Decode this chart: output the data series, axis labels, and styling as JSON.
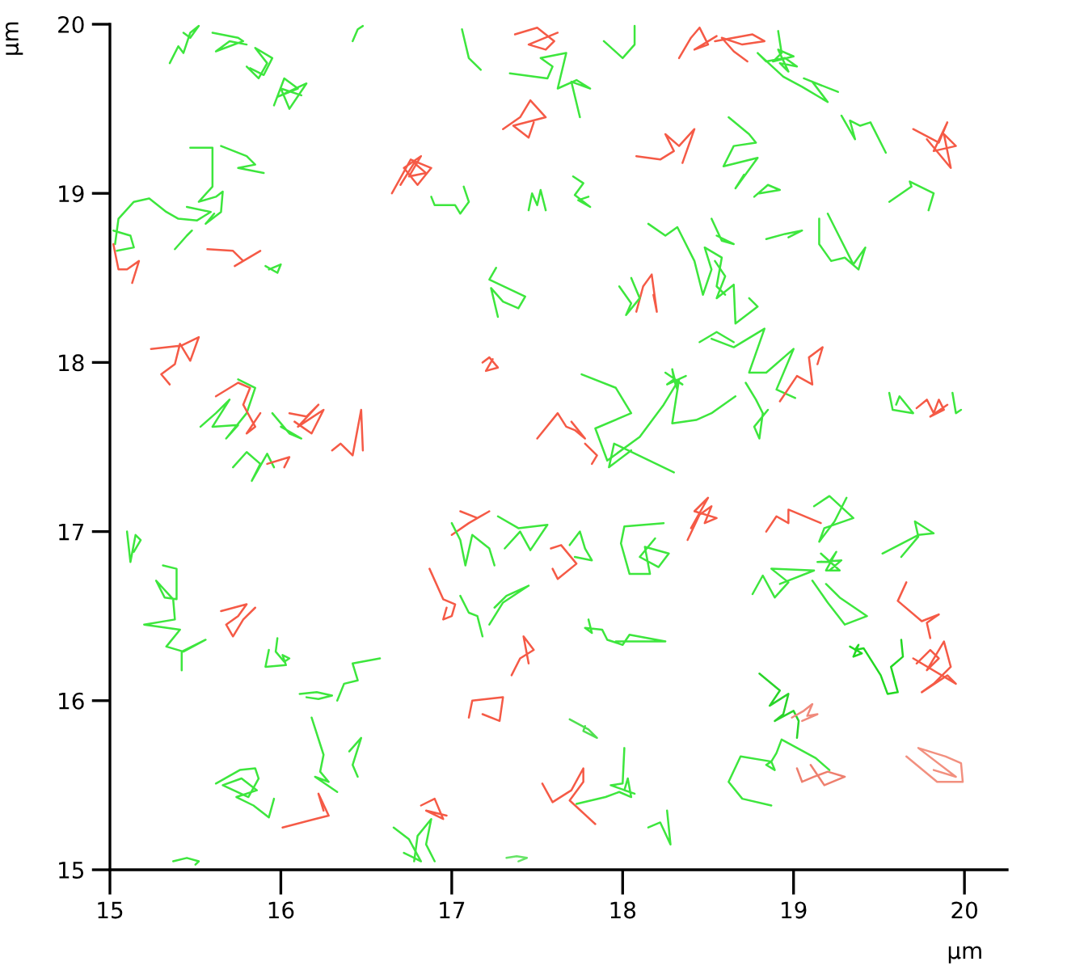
{
  "chart_data": {
    "type": "line",
    "xlabel": "μm",
    "ylabel": "μm",
    "xlim": [
      15,
      20.25
    ],
    "ylim": [
      15,
      20
    ],
    "xticks": [
      15,
      16,
      17,
      18,
      19,
      20
    ],
    "yticks": [
      15,
      16,
      17,
      18,
      19,
      20
    ],
    "series": [
      {
        "color": "#3de63d",
        "x": [
          15.35,
          15.4,
          15.43,
          15.47,
          15.52,
          15.47,
          15.43
        ],
        "values": [
          19.77,
          19.87,
          19.83,
          19.95,
          19.99,
          19.92,
          19.95
        ]
      },
      {
        "color": "#3de63d",
        "x": [
          15.6,
          15.75,
          15.78,
          15.62,
          15.7,
          15.8
        ],
        "values": [
          19.95,
          19.92,
          19.9,
          19.84,
          19.9,
          19.88
        ]
      },
      {
        "color": "#3de63d",
        "x": [
          15.8,
          15.87,
          15.92,
          15.85,
          15.95,
          15.9,
          15.82
        ],
        "values": [
          19.75,
          19.68,
          19.77,
          19.86,
          19.8,
          19.7,
          19.74
        ]
      },
      {
        "color": "#3de63d",
        "x": [
          15.96,
          16.02,
          16.1,
          15.98,
          16.15,
          16.05,
          16.0,
          16.12
        ],
        "values": [
          19.52,
          19.68,
          19.62,
          19.57,
          19.65,
          19.5,
          19.62,
          19.58
        ]
      },
      {
        "color": "#3de63d",
        "x": [
          16.42,
          16.45,
          16.48
        ],
        "values": [
          19.9,
          19.97,
          19.99
        ]
      },
      {
        "color": "#3de63d",
        "x": [
          15.47,
          15.6,
          15.6,
          15.52,
          15.62,
          15.66,
          15.65,
          15.56,
          15.61
        ],
        "values": [
          19.27,
          19.27,
          19.04,
          18.95,
          18.98,
          19.01,
          18.89,
          18.82,
          18.88
        ]
      },
      {
        "color": "#3de63d",
        "x": [
          15.65,
          15.8,
          15.85,
          15.75,
          15.9
        ],
        "values": [
          19.28,
          19.22,
          19.17,
          19.15,
          19.12
        ]
      },
      {
        "color": "#3de63d",
        "x": [
          15.03,
          15.05,
          15.14,
          15.23,
          15.33,
          15.4,
          15.51,
          15.59,
          15.45
        ],
        "values": [
          18.7,
          18.85,
          18.95,
          18.97,
          18.89,
          18.85,
          18.84,
          18.89,
          18.92
        ]
      },
      {
        "color": "#3de63d",
        "x": [
          15.02,
          15.12,
          15.14,
          15.04
        ],
        "values": [
          18.78,
          18.75,
          18.68,
          18.66
        ]
      },
      {
        "color": "#3de63d",
        "x": [
          15.38,
          15.45,
          15.48
        ],
        "values": [
          18.67,
          18.75,
          18.78
        ]
      },
      {
        "color": "#f55a46",
        "x": [
          15.57,
          15.72,
          15.78,
          15.73,
          15.88
        ],
        "values": [
          18.67,
          18.66,
          18.6,
          18.57,
          18.66
        ]
      },
      {
        "color": "#3de63d",
        "x": [
          15.91,
          15.98,
          16.0,
          15.93
        ],
        "values": [
          18.57,
          18.53,
          18.58,
          18.55
        ]
      },
      {
        "color": "#f55a46",
        "x": [
          15.02,
          15.05,
          15.1,
          15.17,
          15.13
        ],
        "values": [
          18.7,
          18.55,
          18.55,
          18.6,
          18.47
        ]
      },
      {
        "color": "#f55a46",
        "x": [
          15.24,
          15.42,
          15.52,
          15.47,
          15.41,
          15.38,
          15.3,
          15.35
        ],
        "values": [
          18.08,
          18.1,
          18.15,
          18.01,
          18.11,
          17.99,
          17.93,
          17.87
        ]
      },
      {
        "color": "#3de63d",
        "x": [
          15.53,
          15.62,
          15.7,
          15.6,
          15.75,
          15.68,
          15.8,
          15.85,
          15.75
        ],
        "values": [
          17.62,
          17.7,
          17.78,
          17.62,
          17.63,
          17.55,
          17.7,
          17.85,
          17.9
        ]
      },
      {
        "color": "#f55a46",
        "x": [
          15.62,
          15.75,
          15.82,
          15.78,
          15.85,
          15.8,
          15.88
        ],
        "values": [
          17.8,
          17.88,
          17.85,
          17.75,
          17.62,
          17.58,
          17.7
        ]
      },
      {
        "color": "#3de63d",
        "x": [
          15.72,
          15.8,
          15.88,
          15.83,
          15.92,
          15.96
        ],
        "values": [
          17.38,
          17.47,
          17.4,
          17.3,
          17.46,
          17.38
        ]
      },
      {
        "color": "#f55a46",
        "x": [
          15.92,
          16.05,
          16.02
        ],
        "values": [
          17.4,
          17.44,
          17.38
        ]
      },
      {
        "color": "#f55a46",
        "x": [
          16.05,
          16.15,
          16.22,
          16.1,
          16.25,
          16.18,
          16.08
        ],
        "values": [
          17.7,
          17.68,
          17.75,
          17.62,
          17.72,
          17.58,
          17.65
        ]
      },
      {
        "color": "#3de63d",
        "x": [
          15.95,
          16.05,
          16.12,
          16.0
        ],
        "values": [
          17.7,
          17.58,
          17.55,
          17.62
        ]
      },
      {
        "color": "#f55a46",
        "x": [
          16.3,
          16.35,
          16.42,
          16.47,
          16.48
        ],
        "values": [
          17.48,
          17.52,
          17.45,
          17.72,
          17.48
        ]
      },
      {
        "color": "#3de63d",
        "x": [
          17.06,
          17.1,
          17.17
        ],
        "values": [
          19.97,
          19.8,
          19.73
        ]
      },
      {
        "color": "#f55a46",
        "x": [
          17.37,
          17.5,
          17.6,
          17.55,
          17.45,
          17.62
        ],
        "values": [
          19.94,
          19.98,
          19.9,
          19.85,
          19.88,
          19.95
        ]
      },
      {
        "color": "#3de63d",
        "x": [
          17.34,
          17.56,
          17.59,
          17.52,
          17.67,
          17.62,
          17.73,
          17.81,
          17.7,
          17.75
        ],
        "values": [
          19.71,
          19.68,
          19.75,
          19.8,
          19.83,
          19.62,
          19.67,
          19.62,
          19.66,
          19.45
        ]
      },
      {
        "color": "#3de63d",
        "x": [
          17.89,
          18.0,
          18.07,
          18.07
        ],
        "values": [
          19.9,
          19.8,
          19.88,
          19.99
        ]
      },
      {
        "color": "#f55a46",
        "x": [
          18.33,
          18.4,
          18.45,
          18.5,
          18.42,
          18.55
        ],
        "values": [
          19.8,
          19.92,
          19.98,
          19.88,
          19.85,
          19.93
        ]
      },
      {
        "color": "#f55a46",
        "x": [
          17.3,
          17.4,
          17.46,
          17.55,
          17.36,
          17.45,
          17.48
        ],
        "values": [
          19.38,
          19.45,
          19.55,
          19.45,
          19.4,
          19.33,
          19.42
        ]
      },
      {
        "color": "#f55a46",
        "x": [
          16.7,
          16.78,
          16.85,
          16.75,
          16.82,
          16.72,
          16.8,
          16.88,
          16.76,
          16.65
        ],
        "values": [
          19.05,
          19.18,
          19.12,
          19.1,
          19.22,
          19.15,
          19.05,
          19.15,
          19.2,
          19.0
        ]
      },
      {
        "color": "#3de63d",
        "x": [
          16.88,
          16.9,
          17.02,
          17.05,
          17.1,
          17.07
        ],
        "values": [
          18.98,
          18.93,
          18.93,
          18.88,
          18.95,
          19.04
        ]
      },
      {
        "color": "#3de63d",
        "x": [
          17.45,
          17.47,
          17.5,
          17.52,
          17.55
        ],
        "values": [
          18.9,
          19.0,
          18.93,
          19.02,
          18.9
        ]
      },
      {
        "color": "#3de63d",
        "x": [
          17.71,
          17.77,
          17.72,
          17.81,
          17.74,
          17.8
        ],
        "values": [
          19.1,
          19.06,
          18.99,
          18.92,
          18.96,
          18.98
        ]
      },
      {
        "color": "#f55a46",
        "x": [
          18.08,
          18.22,
          18.3,
          18.25,
          18.33,
          18.42,
          18.35
        ],
        "values": [
          19.22,
          19.2,
          19.25,
          19.35,
          19.28,
          19.38,
          19.18
        ]
      },
      {
        "color": "#3de63d",
        "x": [
          18.15,
          18.25,
          18.32,
          18.42,
          18.47,
          18.52,
          18.48,
          18.58,
          18.55,
          18.6
        ],
        "values": [
          18.82,
          18.75,
          18.8,
          18.6,
          18.4,
          18.55,
          18.68,
          18.62,
          18.45,
          18.4
        ]
      },
      {
        "color": "#f55a46",
        "x": [
          18.08,
          18.12,
          18.17,
          18.2,
          18.18
        ],
        "values": [
          18.3,
          18.45,
          18.52,
          18.3,
          18.4
        ]
      },
      {
        "color": "#3de63d",
        "x": [
          17.98,
          18.05,
          18.02,
          18.1,
          18.05
        ],
        "values": [
          18.45,
          18.35,
          18.28,
          18.38,
          18.5
        ]
      },
      {
        "color": "#3de63d",
        "x": [
          17.26,
          17.22,
          17.43,
          17.39,
          17.3,
          17.23,
          17.27
        ],
        "values": [
          18.56,
          18.49,
          18.39,
          18.32,
          18.36,
          18.44,
          18.27
        ]
      },
      {
        "color": "#f55a46",
        "x": [
          17.18,
          17.22,
          17.27,
          17.2,
          17.24
        ],
        "values": [
          18.0,
          18.03,
          17.97,
          17.95,
          18.02
        ]
      },
      {
        "color": "#f55a46",
        "x": [
          17.5,
          17.62,
          17.67,
          17.72,
          17.78,
          17.7
        ],
        "values": [
          17.55,
          17.7,
          17.62,
          17.6,
          17.55,
          17.65
        ]
      },
      {
        "color": "#3de63d",
        "x": [
          17.76,
          17.96,
          18.05,
          17.84,
          17.91,
          18.1,
          18.24,
          18.33,
          18.29,
          18.43,
          18.52,
          18.66
        ],
        "values": [
          17.93,
          17.85,
          17.7,
          17.61,
          17.42,
          17.56,
          17.75,
          17.9,
          17.64,
          17.66,
          17.7,
          17.8
        ]
      },
      {
        "color": "#3de63d",
        "x": [
          18.25,
          18.35,
          18.3,
          18.29,
          18.32,
          18.3,
          18.26,
          18.37
        ],
        "values": [
          17.94,
          17.87,
          17.9,
          17.96,
          17.84,
          17.9,
          17.87,
          17.92
        ]
      },
      {
        "color": "#3de63d",
        "x": [
          18.45,
          18.55,
          18.65
        ],
        "values": [
          18.12,
          18.18,
          18.12
        ]
      },
      {
        "color": "#3de63d",
        "x": [
          18.3,
          17.95,
          17.92,
          18.05
        ],
        "values": [
          17.35,
          17.52,
          17.38,
          17.48
        ]
      },
      {
        "color": "#f55a46",
        "x": [
          17.78,
          17.85,
          17.82
        ],
        "values": [
          17.52,
          17.45,
          17.4
        ]
      },
      {
        "color": "#f55a46",
        "x": [
          18.54,
          18.76,
          18.83,
          18.7,
          18.58,
          18.65,
          18.73
        ],
        "values": [
          19.9,
          19.94,
          19.9,
          19.88,
          19.92,
          19.84,
          19.78
        ]
      },
      {
        "color": "#3de63d",
        "x": [
          18.91,
          18.93,
          18.88,
          19.0,
          18.91,
          18.97,
          18.92,
          19.02,
          18.95,
          18.84,
          18.79,
          18.94,
          19.05,
          19.2,
          19.11,
          19.26,
          19.06
        ],
        "values": [
          19.96,
          19.83,
          19.78,
          19.81,
          19.85,
          19.72,
          19.77,
          19.75,
          19.8,
          19.78,
          19.83,
          19.69,
          19.63,
          19.54,
          19.66,
          19.6,
          19.68
        ]
      },
      {
        "color": "#3de63d",
        "x": [
          19.28,
          19.36,
          19.33,
          19.39,
          19.45,
          19.54
        ],
        "values": [
          19.46,
          19.32,
          19.43,
          19.4,
          19.42,
          19.24
        ]
      },
      {
        "color": "#f55a46",
        "x": [
          19.7,
          19.85,
          19.9,
          19.82,
          19.95,
          19.88,
          19.92,
          19.78
        ],
        "values": [
          19.38,
          19.3,
          19.42,
          19.25,
          19.28,
          19.35,
          19.15,
          19.32
        ]
      },
      {
        "color": "#3de63d",
        "x": [
          19.56,
          19.69,
          19.68,
          19.82,
          19.79
        ],
        "values": [
          18.95,
          19.04,
          19.07,
          19.0,
          18.9
        ]
      },
      {
        "color": "#3de63d",
        "x": [
          18.62,
          18.74,
          18.78,
          18.65,
          18.59,
          18.79,
          18.66,
          18.71
        ],
        "values": [
          19.45,
          19.35,
          19.3,
          19.28,
          19.16,
          19.21,
          19.03,
          19.11
        ]
      },
      {
        "color": "#3de63d",
        "x": [
          18.77,
          18.85,
          18.92,
          18.8
        ],
        "values": [
          18.98,
          19.05,
          19.02,
          19.0
        ]
      },
      {
        "color": "#3de63d",
        "x": [
          18.84,
          18.95,
          19.05,
          18.97
        ],
        "values": [
          18.73,
          18.76,
          18.78,
          18.74
        ]
      },
      {
        "color": "#3de63d",
        "x": [
          19.15,
          19.15,
          19.22,
          19.3,
          19.38,
          19.42,
          19.35,
          19.25,
          19.2
        ],
        "values": [
          18.85,
          18.7,
          18.6,
          18.62,
          18.55,
          18.68,
          18.58,
          18.78,
          18.88
        ]
      },
      {
        "color": "#3de63d",
        "x": [
          18.52,
          18.58,
          18.65,
          18.55
        ],
        "values": [
          18.85,
          18.72,
          18.7,
          18.75
        ]
      },
      {
        "color": "#3de63d",
        "x": [
          18.54,
          18.6,
          18.55,
          18.65,
          18.66,
          18.79,
          18.74
        ],
        "values": [
          18.6,
          18.51,
          18.38,
          18.46,
          18.23,
          18.33,
          18.38
        ]
      },
      {
        "color": "#3de63d",
        "x": [
          18.52,
          18.65,
          18.83,
          18.74,
          18.84,
          19.0,
          18.9,
          19.01
        ],
        "values": [
          18.14,
          18.09,
          18.2,
          17.94,
          17.94,
          18.08,
          17.84,
          17.79
        ]
      },
      {
        "color": "#3de63d",
        "x": [
          18.72,
          18.78,
          18.82,
          18.8,
          18.77,
          18.85
        ],
        "values": [
          17.88,
          17.78,
          17.7,
          17.55,
          17.62,
          17.72
        ]
      },
      {
        "color": "#f55a46",
        "x": [
          18.92,
          19.02,
          19.11,
          19.09,
          19.17,
          19.14
        ],
        "values": [
          17.77,
          17.92,
          17.87,
          18.03,
          18.09,
          17.99
        ]
      },
      {
        "color": "#3de63d",
        "x": [
          19.56,
          19.58,
          19.7,
          19.62,
          19.6
        ],
        "values": [
          17.82,
          17.72,
          17.7,
          17.8,
          17.75
        ]
      },
      {
        "color": "#f55a46",
        "x": [
          19.72,
          19.78,
          19.82,
          19.85,
          19.88,
          19.8,
          19.9
        ],
        "values": [
          17.73,
          17.78,
          17.7,
          17.78,
          17.72,
          17.68,
          17.75
        ]
      },
      {
        "color": "#3de63d",
        "x": [
          19.93,
          19.95,
          19.98
        ],
        "values": [
          17.82,
          17.7,
          17.72
        ]
      },
      {
        "color": "#3de63d",
        "x": [
          15.1,
          15.12,
          15.15,
          15.18,
          15.14
        ],
        "values": [
          17.0,
          16.82,
          16.98,
          16.95,
          16.88
        ]
      },
      {
        "color": "#3de63d",
        "x": [
          15.31,
          15.39,
          15.39,
          15.32,
          15.27,
          15.37,
          15.38,
          15.2,
          15.41,
          15.33,
          15.43,
          15.56,
          15.42,
          15.42
        ],
        "values": [
          16.8,
          16.78,
          16.6,
          16.61,
          16.71,
          16.6,
          16.48,
          16.45,
          16.42,
          16.32,
          16.29,
          16.36,
          16.29,
          16.18
        ]
      },
      {
        "color": "#f55a46",
        "x": [
          15.65,
          15.8,
          15.75,
          15.68,
          15.72,
          15.78,
          15.85
        ],
        "values": [
          16.53,
          16.57,
          16.5,
          16.45,
          16.38,
          16.48,
          16.55
        ]
      },
      {
        "color": "#3de63d",
        "x": [
          15.98,
          15.97,
          16.02,
          16.05,
          16.01,
          16.03,
          15.91,
          15.93
        ],
        "values": [
          16.37,
          16.29,
          16.23,
          16.25,
          16.27,
          16.21,
          16.2,
          16.3
        ]
      },
      {
        "color": "#3de63d",
        "x": [
          16.11,
          16.21,
          16.3,
          16.22,
          16.15
        ],
        "values": [
          16.04,
          16.05,
          16.03,
          16.01,
          16.02
        ]
      },
      {
        "color": "#3de63d",
        "x": [
          16.33,
          16.37,
          16.45,
          16.42,
          16.58
        ],
        "values": [
          16.0,
          16.1,
          16.12,
          16.22,
          16.25
        ]
      },
      {
        "color": "#3de63d",
        "x": [
          16.18,
          16.25,
          16.23,
          16.28,
          16.2,
          16.33
        ],
        "values": [
          15.9,
          15.68,
          15.58,
          15.52,
          15.55,
          15.46
        ]
      },
      {
        "color": "#3de63d",
        "x": [
          16.4,
          16.47,
          16.42,
          16.45
        ],
        "values": [
          15.7,
          15.78,
          15.62,
          15.55
        ]
      },
      {
        "color": "#3de63d",
        "x": [
          15.62,
          15.76,
          15.85,
          15.87,
          15.81,
          15.66,
          15.77,
          15.86,
          15.74,
          15.84,
          15.93,
          15.96
        ],
        "values": [
          15.51,
          15.59,
          15.6,
          15.54,
          15.43,
          15.5,
          15.54,
          15.47,
          15.43,
          15.38,
          15.31,
          15.42
        ]
      },
      {
        "color": "#f55a46",
        "x": [
          16.01,
          16.2,
          16.28,
          16.22,
          16.25
        ],
        "values": [
          15.25,
          15.3,
          15.32,
          15.45,
          15.35
        ]
      },
      {
        "color": "#3de63d",
        "x": [
          15.37,
          15.45,
          15.52,
          15.5
        ],
        "values": [
          15.05,
          15.07,
          15.05,
          15.03
        ]
      },
      {
        "color": "#3de63d",
        "x": [
          16.66,
          16.75,
          16.82,
          16.72
        ],
        "values": [
          15.25,
          15.18,
          15.05,
          15.1
        ]
      },
      {
        "color": "#f55a46",
        "x": [
          17.05,
          17.15,
          17.22,
          17.1,
          17.0
        ],
        "values": [
          17.12,
          17.08,
          17.12,
          17.05,
          16.98
        ]
      },
      {
        "color": "#3de63d",
        "x": [
          17.0,
          17.05,
          17.08,
          17.12,
          17.22,
          17.25
        ],
        "values": [
          17.05,
          16.95,
          16.8,
          16.98,
          16.9,
          16.8
        ]
      },
      {
        "color": "#3de63d",
        "x": [
          17.27,
          17.39,
          17.56,
          17.46,
          17.4,
          17.31
        ],
        "values": [
          17.09,
          17.02,
          17.04,
          16.89,
          17.0,
          16.9
        ]
      },
      {
        "color": "#f55a46",
        "x": [
          17.58,
          17.64,
          17.73,
          17.62,
          17.59
        ],
        "values": [
          16.9,
          16.92,
          16.81,
          16.72,
          16.78
        ]
      },
      {
        "color": "#3de63d",
        "x": [
          17.69,
          17.75,
          17.78,
          17.82,
          17.72
        ],
        "values": [
          16.92,
          17.0,
          16.9,
          16.83,
          16.85
        ]
      },
      {
        "color": "#3de63d",
        "x": [
          18.24,
          18.01,
          17.99,
          18.04,
          18.16,
          18.13,
          18.27,
          18.21,
          18.1,
          18.19
        ],
        "values": [
          17.05,
          17.03,
          16.93,
          16.75,
          16.75,
          16.91,
          16.87,
          16.79,
          16.85,
          16.96
        ]
      },
      {
        "color": "#f55a46",
        "x": [
          18.38,
          18.45,
          18.52,
          18.48,
          18.55,
          18.42,
          18.5,
          18.4
        ],
        "values": [
          16.95,
          17.1,
          17.15,
          17.05,
          17.08,
          17.12,
          17.2,
          17.02
        ]
      },
      {
        "color": "#f55a46",
        "x": [
          16.87,
          16.95,
          17.02,
          17.0,
          16.95,
          16.97
        ],
        "values": [
          16.78,
          16.6,
          16.57,
          16.5,
          16.48,
          16.55
        ]
      },
      {
        "color": "#3de63d",
        "x": [
          17.25,
          17.32,
          17.45,
          17.3,
          17.22
        ],
        "values": [
          16.55,
          16.62,
          16.68,
          16.58,
          16.45
        ]
      },
      {
        "color": "#3de63d",
        "x": [
          17.05,
          17.1,
          17.15,
          17.18
        ],
        "values": [
          16.62,
          16.52,
          16.5,
          16.38
        ]
      },
      {
        "color": "#3de63d",
        "x": [
          17.8,
          17.82,
          17.78,
          17.88,
          17.91,
          18.0,
          18.04,
          18.25,
          17.96
        ],
        "values": [
          16.48,
          16.4,
          16.43,
          16.42,
          16.36,
          16.33,
          16.39,
          16.35,
          16.35
        ]
      },
      {
        "color": "#f55a46",
        "x": [
          17.35,
          17.4,
          17.48,
          17.42,
          17.45
        ],
        "values": [
          16.15,
          16.25,
          16.3,
          16.38,
          16.22
        ]
      },
      {
        "color": "#f55a46",
        "x": [
          17.1,
          17.12,
          17.3,
          17.28,
          17.18
        ],
        "values": [
          15.9,
          16.0,
          16.02,
          15.88,
          15.92
        ]
      },
      {
        "color": "#4fe04f",
        "x": [
          17.69,
          17.8,
          17.85,
          17.77,
          17.78
        ],
        "values": [
          15.89,
          15.83,
          15.78,
          15.82,
          15.85
        ]
      },
      {
        "color": "#f55a46",
        "x": [
          17.53,
          17.59,
          17.7,
          17.77,
          17.77,
          17.69,
          17.84
        ],
        "values": [
          15.51,
          15.4,
          15.47,
          15.6,
          15.52,
          15.41,
          15.27
        ]
      },
      {
        "color": "#3de63d",
        "x": [
          18.01,
          18.0,
          17.93,
          18.07,
          18.01,
          18.03,
          18.05,
          17.98,
          17.9,
          17.73
        ],
        "values": [
          15.72,
          15.51,
          15.5,
          15.45,
          15.47,
          15.54,
          15.43,
          15.46,
          15.43,
          15.39
        ]
      },
      {
        "color": "#3de63d",
        "x": [
          18.15,
          18.22,
          18.28,
          18.26
        ],
        "values": [
          15.25,
          15.28,
          15.15,
          15.35
        ]
      },
      {
        "color": "#f55a46",
        "x": [
          16.82,
          16.9,
          16.95,
          16.85,
          16.97
        ],
        "values": [
          15.38,
          15.42,
          15.3,
          15.35,
          15.32
        ]
      },
      {
        "color": "#3de63d",
        "x": [
          16.78,
          16.8,
          16.88,
          16.85,
          16.9
        ],
        "values": [
          15.05,
          15.2,
          15.3,
          15.15,
          15.05
        ]
      },
      {
        "color": "#66e466",
        "x": [
          17.32,
          17.38,
          17.44,
          17.39
        ],
        "values": [
          15.07,
          15.08,
          15.07,
          15.05
        ]
      },
      {
        "color": "#f55a46",
        "x": [
          18.84,
          18.9,
          18.97,
          18.97,
          19.16
        ],
        "values": [
          17.0,
          17.09,
          17.05,
          17.13,
          17.05
        ]
      },
      {
        "color": "#3de63d",
        "x": [
          19.12,
          19.21,
          19.35,
          19.18,
          19.15,
          19.24,
          19.31
        ],
        "values": [
          17.15,
          17.21,
          17.08,
          17.02,
          16.94,
          17.06,
          17.2
        ]
      },
      {
        "color": "#3de63d",
        "x": [
          19.16,
          19.27,
          19.19,
          19.25,
          19.21,
          19.14,
          19.28,
          19.21
        ],
        "values": [
          16.87,
          16.77,
          16.77,
          16.88,
          16.82,
          16.82,
          16.83,
          16.77
        ]
      },
      {
        "color": "#3de63d",
        "x": [
          18.76,
          18.82,
          18.89,
          18.97,
          18.87,
          19.12,
          18.92
        ],
        "values": [
          16.63,
          16.74,
          16.61,
          16.7,
          16.78,
          16.77,
          16.69
        ]
      },
      {
        "color": "#3de63d",
        "x": [
          19.11,
          19.2,
          19.3,
          19.43,
          19.27,
          19.19
        ],
        "values": [
          16.71,
          16.58,
          16.45,
          16.5,
          16.61,
          16.69
        ]
      },
      {
        "color": "#3de63d",
        "x": [
          19.52,
          19.73,
          19.82,
          19.71,
          19.73,
          19.63
        ],
        "values": [
          16.87,
          16.98,
          16.99,
          17.06,
          16.97,
          16.85
        ]
      },
      {
        "color": "#f55a46",
        "x": [
          19.66,
          19.61,
          19.75,
          19.85,
          19.78,
          19.8
        ],
        "values": [
          16.7,
          16.59,
          16.47,
          16.51,
          16.46,
          16.37
        ]
      },
      {
        "color": "#22d822",
        "x": [
          19.33,
          19.4,
          19.35,
          19.38,
          19.36,
          19.41,
          19.51,
          19.55,
          19.61,
          19.57,
          19.64,
          19.63
        ],
        "values": [
          16.32,
          16.28,
          16.26,
          16.33,
          16.3,
          16.31,
          16.15,
          16.04,
          16.05,
          16.2,
          16.26,
          16.36
        ]
      },
      {
        "color": "#f55a46",
        "x": [
          19.72,
          19.8,
          19.85,
          19.78,
          19.88,
          19.92,
          19.82,
          19.75,
          19.9,
          19.95,
          19.7
        ],
        "values": [
          16.22,
          16.3,
          16.25,
          16.18,
          16.35,
          16.2,
          16.1,
          16.05,
          16.15,
          16.1,
          16.25
        ]
      },
      {
        "color": "#2ad42a",
        "x": [
          18.8,
          18.92,
          18.86,
          18.97,
          18.94,
          18.89,
          19.0,
          19.03,
          19.02
        ],
        "values": [
          16.16,
          16.06,
          15.97,
          16.04,
          15.92,
          15.88,
          15.94,
          15.88,
          15.78
        ]
      },
      {
        "color": "#f08a7c",
        "x": [
          18.99,
          19.06,
          19.11,
          19.08,
          19.14,
          19.05
        ],
        "values": [
          15.9,
          15.94,
          15.98,
          15.91,
          15.92,
          15.88
        ]
      },
      {
        "color": "#3de63d",
        "x": [
          19.21,
          19.13,
          18.93,
          18.9,
          18.87,
          18.84,
          18.89,
          18.87,
          18.69,
          18.62,
          18.7,
          18.87
        ],
        "values": [
          15.59,
          15.66,
          15.77,
          15.69,
          15.64,
          15.62,
          15.59,
          15.64,
          15.67,
          15.52,
          15.42,
          15.38
        ]
      },
      {
        "color": "#ee7f6e",
        "x": [
          19.02,
          19.05,
          19.12,
          19.2,
          19.3,
          19.18,
          19.1
        ],
        "values": [
          15.6,
          15.52,
          15.55,
          15.58,
          15.55,
          15.5,
          15.62
        ]
      },
      {
        "color": "#f2907f",
        "x": [
          19.66,
          19.84,
          19.99,
          19.98,
          19.89,
          19.73,
          19.95,
          19.82
        ],
        "values": [
          15.67,
          15.52,
          15.52,
          15.63,
          15.67,
          15.72,
          15.55,
          15.59
        ]
      }
    ]
  }
}
